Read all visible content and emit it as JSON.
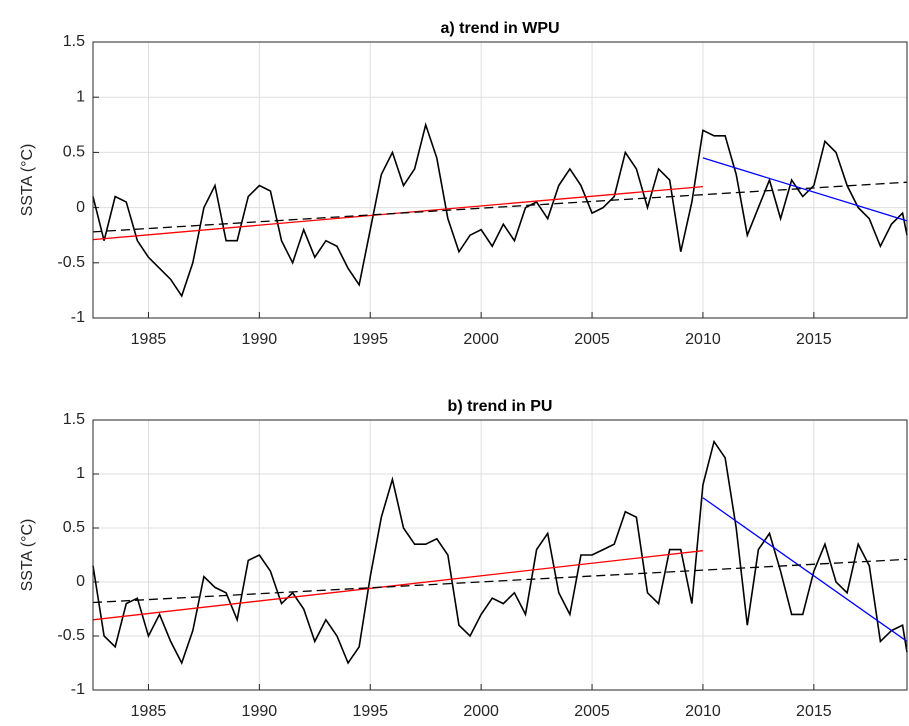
{
  "chart_data": [
    {
      "type": "line",
      "title": "a) trend in WPU",
      "ylabel": "SSTA (°C)",
      "grid": true,
      "xlim": [
        1982.5,
        2019.2
      ],
      "ylim": [
        -1,
        1.5
      ],
      "xticks": [
        1985,
        1990,
        1995,
        2000,
        2005,
        2010,
        2015
      ],
      "yticks": [
        -1,
        -0.5,
        0,
        0.5,
        1,
        1.5
      ],
      "x": [
        1982.5,
        1983,
        1983.5,
        1984,
        1984.5,
        1985,
        1985.5,
        1986,
        1986.5,
        1987,
        1987.5,
        1988,
        1988.5,
        1989,
        1989.5,
        1990,
        1990.5,
        1991,
        1991.5,
        1992,
        1992.5,
        1993,
        1993.5,
        1994,
        1994.5,
        1995,
        1995.5,
        1996,
        1996.5,
        1997,
        1997.5,
        1998,
        1998.5,
        1999,
        1999.5,
        2000,
        2000.5,
        2001,
        2001.5,
        2002,
        2002.5,
        2003,
        2003.5,
        2004,
        2004.5,
        2005,
        2005.5,
        2006,
        2006.5,
        2007,
        2007.5,
        2008,
        2008.5,
        2009,
        2009.5,
        2010,
        2010.5,
        2011,
        2011.5,
        2012,
        2012.5,
        2013,
        2013.5,
        2014,
        2014.5,
        2015,
        2015.5,
        2016,
        2016.5,
        2017,
        2017.5,
        2018,
        2018.5,
        2019,
        2019.2
      ],
      "series": [
        {
          "color": "#000000",
          "linestyle": "solid",
          "values": [
            0.1,
            -0.3,
            0.1,
            0.05,
            -0.3,
            -0.45,
            -0.55,
            -0.65,
            -0.8,
            -0.5,
            0.0,
            0.2,
            -0.3,
            -0.3,
            0.1,
            0.2,
            0.15,
            -0.3,
            -0.5,
            -0.2,
            -0.45,
            -0.3,
            -0.35,
            -0.55,
            -0.7,
            -0.2,
            0.3,
            0.5,
            0.2,
            0.35,
            0.75,
            0.45,
            -0.1,
            -0.4,
            -0.25,
            -0.2,
            -0.35,
            -0.15,
            -0.3,
            0.0,
            0.05,
            -0.1,
            0.2,
            0.35,
            0.2,
            -0.05,
            0.0,
            0.1,
            0.5,
            0.35,
            0.0,
            0.35,
            0.25,
            -0.4,
            0.05,
            0.7,
            0.65,
            0.65,
            0.3,
            -0.25,
            0.0,
            0.25,
            -0.1,
            0.25,
            0.1,
            0.2,
            0.6,
            0.5,
            0.2,
            0.0,
            -0.1,
            -0.35,
            -0.15,
            -0.05,
            -0.25
          ]
        },
        {
          "color": "#ff0000",
          "linestyle": "solid",
          "x": [
            1982.5,
            2010
          ],
          "values": [
            -0.29,
            0.19
          ]
        },
        {
          "color": "#0000ff",
          "linestyle": "solid",
          "x": [
            2010,
            2019.2
          ],
          "values": [
            0.45,
            -0.12
          ]
        },
        {
          "color": "#000000",
          "linestyle": "dashed",
          "x": [
            1982.5,
            2019.2
          ],
          "values": [
            -0.22,
            0.23
          ]
        }
      ]
    },
    {
      "type": "line",
      "title": "b) trend in PU",
      "ylabel": "SSTA (°C)",
      "grid": true,
      "xlim": [
        1982.5,
        2019.2
      ],
      "ylim": [
        -1,
        1.5
      ],
      "xticks": [
        1985,
        1990,
        1995,
        2000,
        2005,
        2010,
        2015
      ],
      "yticks": [
        -1,
        -0.5,
        0,
        0.5,
        1,
        1.5
      ],
      "x": [
        1982.5,
        1983,
        1983.5,
        1984,
        1984.5,
        1985,
        1985.5,
        1986,
        1986.5,
        1987,
        1987.5,
        1988,
        1988.5,
        1989,
        1989.5,
        1990,
        1990.5,
        1991,
        1991.5,
        1992,
        1992.5,
        1993,
        1993.5,
        1994,
        1994.5,
        1995,
        1995.5,
        1996,
        1996.5,
        1997,
        1997.5,
        1998,
        1998.5,
        1999,
        1999.5,
        2000,
        2000.5,
        2001,
        2001.5,
        2002,
        2002.5,
        2003,
        2003.5,
        2004,
        2004.5,
        2005,
        2005.5,
        2006,
        2006.5,
        2007,
        2007.5,
        2008,
        2008.5,
        2009,
        2009.5,
        2010,
        2010.5,
        2011,
        2011.5,
        2012,
        2012.5,
        2013,
        2013.5,
        2014,
        2014.5,
        2015,
        2015.5,
        2016,
        2016.5,
        2017,
        2017.5,
        2018,
        2018.5,
        2019,
        2019.2
      ],
      "series": [
        {
          "color": "#000000",
          "linestyle": "solid",
          "values": [
            0.15,
            -0.5,
            -0.6,
            -0.2,
            -0.15,
            -0.5,
            -0.3,
            -0.55,
            -0.75,
            -0.45,
            0.05,
            -0.05,
            -0.1,
            -0.35,
            0.2,
            0.25,
            0.1,
            -0.2,
            -0.1,
            -0.25,
            -0.55,
            -0.35,
            -0.5,
            -0.75,
            -0.6,
            0.05,
            0.6,
            0.95,
            0.5,
            0.35,
            0.35,
            0.4,
            0.25,
            -0.4,
            -0.5,
            -0.3,
            -0.15,
            -0.2,
            -0.1,
            -0.3,
            0.3,
            0.45,
            -0.1,
            -0.3,
            0.25,
            0.25,
            0.3,
            0.35,
            0.65,
            0.6,
            -0.1,
            -0.2,
            0.3,
            0.3,
            -0.2,
            0.9,
            1.3,
            1.15,
            0.5,
            -0.4,
            0.3,
            0.45,
            0.1,
            -0.3,
            -0.3,
            0.1,
            0.35,
            0.0,
            -0.1,
            0.35,
            0.15,
            -0.55,
            -0.45,
            -0.4,
            -0.65
          ]
        },
        {
          "color": "#ff0000",
          "linestyle": "solid",
          "x": [
            1982.5,
            2010
          ],
          "values": [
            -0.35,
            0.29
          ]
        },
        {
          "color": "#0000ff",
          "linestyle": "solid",
          "x": [
            2010,
            2019.2
          ],
          "values": [
            0.78,
            -0.55
          ]
        },
        {
          "color": "#000000",
          "linestyle": "dashed",
          "x": [
            1982.5,
            2019.2
          ],
          "values": [
            -0.19,
            0.21
          ]
        }
      ]
    }
  ]
}
